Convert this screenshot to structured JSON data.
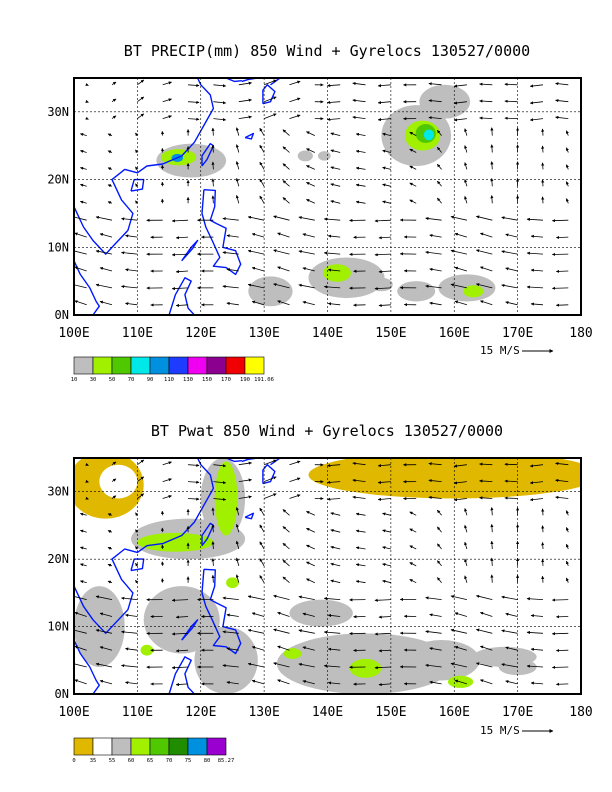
{
  "chart_data": [
    {
      "type": "heatmap",
      "title": "BT PRECIP(mm) 850 Wind + Gyrelocs 130527/0000",
      "xlabel": "",
      "ylabel": "",
      "xlim": [
        100,
        180
      ],
      "ylim": [
        0,
        35
      ],
      "x_ticks": [
        "100E",
        "110E",
        "120E",
        "130E",
        "140E",
        "150E",
        "160E",
        "170E",
        "180"
      ],
      "y_ticks": [
        "0N",
        "10N",
        "20N",
        "30N"
      ],
      "grid": true,
      "vector_scale_label": "15 M/S",
      "colorbar": {
        "labels": [
          "10",
          "30",
          "50",
          "70",
          "90",
          "110",
          "130",
          "150",
          "170",
          "190",
          "191.06"
        ],
        "colors": [
          "#bebebe",
          "#a0f000",
          "#50c800",
          "#00e8e8",
          "#0090e0",
          "#1e3cff",
          "#f000f0",
          "#8c0090",
          "#f00000",
          "#ffff00"
        ]
      },
      "series": [
        {
          "name": "precip_regions",
          "regions": [
            {
              "level": 10,
              "lon": 118.5,
              "lat": 22.8,
              "rx": 5.5,
              "ry": 2.5
            },
            {
              "level": 30,
              "lon": 116.5,
              "lat": 23.3,
              "rx": 2.8,
              "ry": 1.2
            },
            {
              "level": 90,
              "lon": 116.3,
              "lat": 23.2,
              "rx": 0.9,
              "ry": 0.6
            },
            {
              "level": 10,
              "lon": 154,
              "lat": 26.5,
              "rx": 5.5,
              "ry": 4.5
            },
            {
              "level": 10,
              "lon": 158.5,
              "lat": 31.5,
              "rx": 4,
              "ry": 2.5
            },
            {
              "level": 30,
              "lon": 155,
              "lat": 26.5,
              "rx": 2.8,
              "ry": 2.2
            },
            {
              "level": 50,
              "lon": 155.5,
              "lat": 26.8,
              "rx": 1.6,
              "ry": 1.4
            },
            {
              "level": 70,
              "lon": 156,
              "lat": 26.6,
              "rx": 0.8,
              "ry": 0.8
            },
            {
              "level": 10,
              "lon": 143,
              "lat": 5.5,
              "rx": 6,
              "ry": 3
            },
            {
              "level": 30,
              "lon": 141.5,
              "lat": 6.2,
              "rx": 2.2,
              "ry": 1.3
            },
            {
              "level": 10,
              "lon": 162,
              "lat": 4,
              "rx": 4.5,
              "ry": 2
            },
            {
              "level": 30,
              "lon": 163,
              "lat": 3.5,
              "rx": 1.6,
              "ry": 0.9
            },
            {
              "level": 10,
              "lon": 131,
              "lat": 3.5,
              "rx": 3.5,
              "ry": 2.2
            },
            {
              "level": 10,
              "lon": 154,
              "lat": 3.5,
              "rx": 3,
              "ry": 1.5
            },
            {
              "level": 10,
              "lon": 136.5,
              "lat": 23.5,
              "rx": 1.2,
              "ry": 0.8
            },
            {
              "level": 10,
              "lon": 139.5,
              "lat": 23.5,
              "rx": 1,
              "ry": 0.7
            },
            {
              "level": 10,
              "lon": 148.5,
              "lat": 4.5,
              "rx": 1.8,
              "ry": 1
            }
          ]
        }
      ]
    },
    {
      "type": "heatmap",
      "title": "BT Pwat 850 Wind + Gyrelocs 130527/0000",
      "xlabel": "",
      "ylabel": "",
      "xlim": [
        100,
        180
      ],
      "ylim": [
        0,
        35
      ],
      "x_ticks": [
        "100E",
        "110E",
        "120E",
        "130E",
        "140E",
        "150E",
        "160E",
        "170E",
        "180"
      ],
      "y_ticks": [
        "0N",
        "10N",
        "20N",
        "30N"
      ],
      "grid": true,
      "vector_scale_label": "15 M/S",
      "colorbar": {
        "labels": [
          "0",
          "35",
          "55",
          "60",
          "65",
          "70",
          "75",
          "80",
          "85.27"
        ],
        "colors": [
          "#e0b800",
          "#ffffff",
          "#bebebe",
          "#a0f000",
          "#50c800",
          "#208c00",
          "#0090e0",
          "#9a00d0"
        ]
      },
      "series": [
        {
          "name": "pwat_regions",
          "regions": [
            {
              "level": 0,
              "lon": 105,
              "lat": 31,
              "rx": 6,
              "ry": 5
            },
            {
              "level": 0,
              "lon": 160,
              "lat": 32.5,
              "rx": 23,
              "ry": 3.5
            },
            {
              "level": 35,
              "lon": 107,
              "lat": 31.5,
              "rx": 3,
              "ry": 2.5
            },
            {
              "level": 55,
              "lon": 118,
              "lat": 23,
              "rx": 9,
              "ry": 3
            },
            {
              "level": 55,
              "lon": 123.5,
              "lat": 29,
              "rx": 3.5,
              "ry": 6
            },
            {
              "level": 60,
              "lon": 116,
              "lat": 22.5,
              "rx": 6,
              "ry": 1.4
            },
            {
              "level": 60,
              "lon": 124,
              "lat": 29,
              "rx": 1.8,
              "ry": 5.5
            },
            {
              "level": 55,
              "lon": 104,
              "lat": 10,
              "rx": 4,
              "ry": 6
            },
            {
              "level": 55,
              "lon": 117,
              "lat": 11,
              "rx": 6,
              "ry": 5
            },
            {
              "level": 55,
              "lon": 124,
              "lat": 5,
              "rx": 5,
              "ry": 5
            },
            {
              "level": 55,
              "lon": 146,
              "lat": 4.5,
              "rx": 14,
              "ry": 4.5
            },
            {
              "level": 55,
              "lon": 158,
              "lat": 5,
              "rx": 6,
              "ry": 3
            },
            {
              "level": 55,
              "lon": 168,
              "lat": 5.5,
              "rx": 5,
              "ry": 1.5
            },
            {
              "level": 55,
              "lon": 139,
              "lat": 12,
              "rx": 5,
              "ry": 2
            },
            {
              "level": 55,
              "lon": 170,
              "lat": 4,
              "rx": 3,
              "ry": 1.2
            },
            {
              "level": 60,
              "lon": 146,
              "lat": 3.8,
              "rx": 2.5,
              "ry": 1.4
            },
            {
              "level": 60,
              "lon": 134.5,
              "lat": 6,
              "rx": 1.4,
              "ry": 0.8
            },
            {
              "level": 60,
              "lon": 161,
              "lat": 1.8,
              "rx": 2,
              "ry": 0.9
            },
            {
              "level": 60,
              "lon": 111.5,
              "lat": 6.5,
              "rx": 1,
              "ry": 0.8
            },
            {
              "level": 60,
              "lon": 125,
              "lat": 16.5,
              "rx": 1,
              "ry": 0.8
            }
          ]
        }
      ]
    }
  ]
}
